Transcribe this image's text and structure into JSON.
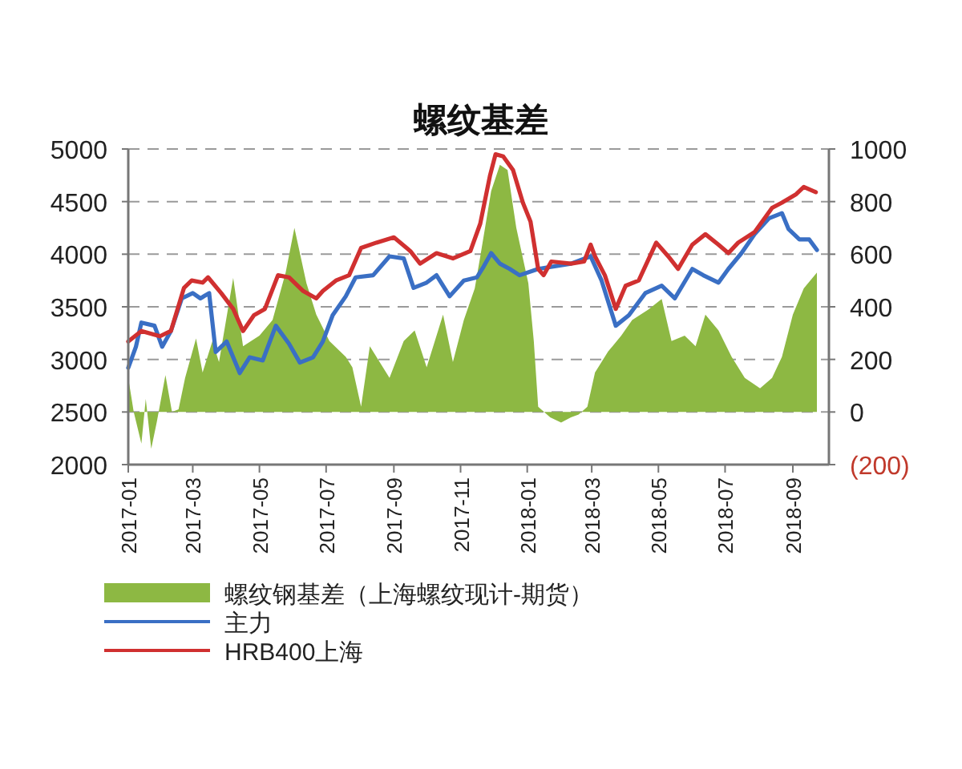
{
  "chart_data": {
    "type": "line",
    "title": "螺纹基差",
    "xlim": [
      "2017-01-01",
      "2018-10-04"
    ],
    "xticks": [
      "2017-01",
      "2017-03",
      "2017-05",
      "2017-07",
      "2017-09",
      "2017-11",
      "2018-01",
      "2018-03",
      "2018-05",
      "2018-07",
      "2018-09"
    ],
    "ylim": [
      2000,
      5000
    ],
    "yticks": [
      2000,
      2500,
      3000,
      3500,
      4000,
      4500,
      5000
    ],
    "y2lim": [
      -200,
      1000
    ],
    "y2ticks": [
      {
        "value": -200,
        "label": "(200)"
      },
      0,
      200,
      400,
      600,
      800,
      1000
    ],
    "grid": "y",
    "legend": "bottom",
    "series": [
      {
        "name": "螺纹钢基差（上海螺纹现计-期货）",
        "type": "area",
        "axis": "y2",
        "color": "#8db843",
        "x": [
          "2017-01-01",
          "2017-01-06",
          "2017-01-13",
          "2017-01-17",
          "2017-01-22",
          "2017-01-27",
          "2017-02-04",
          "2017-02-10",
          "2017-02-16",
          "2017-02-22",
          "2017-03-04",
          "2017-03-10",
          "2017-03-19",
          "2017-03-25",
          "2017-04-07",
          "2017-04-16",
          "2017-05-01",
          "2017-05-13",
          "2017-05-25",
          "2017-06-02",
          "2017-06-13",
          "2017-06-22",
          "2017-07-04",
          "2017-07-19",
          "2017-07-25",
          "2017-08-02",
          "2017-08-10",
          "2017-08-19",
          "2017-08-28",
          "2017-09-10",
          "2017-09-20",
          "2017-10-01",
          "2017-10-16",
          "2017-10-25",
          "2017-11-04",
          "2017-11-14",
          "2017-11-19",
          "2017-11-29",
          "2017-12-07",
          "2017-12-14",
          "2017-12-22",
          "2018-01-02",
          "2018-01-07",
          "2018-01-11",
          "2018-01-22",
          "2018-02-01",
          "2018-02-10",
          "2018-02-17",
          "2018-02-25",
          "2018-03-04",
          "2018-03-16",
          "2018-03-28",
          "2018-04-07",
          "2018-04-22",
          "2018-05-04",
          "2018-05-13",
          "2018-05-25",
          "2018-06-04",
          "2018-06-13",
          "2018-06-25",
          "2018-07-07",
          "2018-07-19",
          "2018-08-02",
          "2018-08-13",
          "2018-08-22",
          "2018-09-01",
          "2018-09-11",
          "2018-09-23"
        ],
        "values": [
          130,
          0,
          -120,
          50,
          -140,
          -40,
          140,
          0,
          10,
          130,
          280,
          150,
          270,
          190,
          510,
          250,
          290,
          350,
          530,
          700,
          490,
          370,
          270,
          210,
          170,
          20,
          250,
          190,
          130,
          270,
          310,
          170,
          370,
          190,
          350,
          470,
          590,
          840,
          940,
          920,
          700,
          490,
          270,
          20,
          -20,
          -40,
          -20,
          -10,
          20,
          150,
          230,
          290,
          350,
          390,
          430,
          270,
          290,
          250,
          370,
          310,
          210,
          130,
          90,
          130,
          210,
          370,
          470,
          530
        ]
      },
      {
        "name": "主力",
        "color": "#3a6fc4",
        "x": [
          "2017-01-01",
          "2017-01-08",
          "2017-01-13",
          "2017-01-25",
          "2017-02-01",
          "2017-02-09",
          "2017-02-19",
          "2017-03-01",
          "2017-03-08",
          "2017-03-16",
          "2017-03-22",
          "2017-04-01",
          "2017-04-13",
          "2017-04-22",
          "2017-05-04",
          "2017-05-16",
          "2017-05-28",
          "2017-06-07",
          "2017-06-19",
          "2017-06-28",
          "2017-07-07",
          "2017-07-19",
          "2017-07-28",
          "2017-08-13",
          "2017-08-28",
          "2017-09-10",
          "2017-09-19",
          "2017-10-01",
          "2017-10-10",
          "2017-10-22",
          "2017-11-04",
          "2017-11-16",
          "2017-11-22",
          "2017-11-29",
          "2017-12-07",
          "2017-12-16",
          "2017-12-25",
          "2018-01-11",
          "2018-02-10",
          "2018-02-28",
          "2018-03-10",
          "2018-03-23",
          "2018-04-04",
          "2018-04-19",
          "2018-05-04",
          "2018-05-16",
          "2018-06-01",
          "2018-06-11",
          "2018-06-25",
          "2018-07-04",
          "2018-07-16",
          "2018-07-28",
          "2018-08-10",
          "2018-08-22",
          "2018-08-28",
          "2018-09-07",
          "2018-09-16",
          "2018-09-23"
        ],
        "values": [
          2920,
          3120,
          3350,
          3320,
          3120,
          3270,
          3580,
          3630,
          3580,
          3630,
          3070,
          3170,
          2870,
          3020,
          2990,
          3320,
          3150,
          2970,
          3020,
          3170,
          3420,
          3600,
          3780,
          3800,
          3980,
          3960,
          3680,
          3730,
          3800,
          3600,
          3750,
          3780,
          3880,
          4010,
          3910,
          3860,
          3800,
          3860,
          3910,
          3980,
          3750,
          3320,
          3420,
          3630,
          3700,
          3580,
          3860,
          3800,
          3730,
          3860,
          4010,
          4190,
          4340,
          4390,
          4240,
          4140,
          4140,
          4040
        ]
      },
      {
        "name": "HRB400上海",
        "color": "#d03030",
        "x": [
          "2017-01-01",
          "2017-01-13",
          "2017-01-30",
          "2017-02-09",
          "2017-02-21",
          "2017-02-28",
          "2017-03-10",
          "2017-03-15",
          "2017-03-27",
          "2017-04-07",
          "2017-04-16",
          "2017-04-26",
          "2017-05-06",
          "2017-05-18",
          "2017-05-28",
          "2017-06-10",
          "2017-06-22",
          "2017-06-28",
          "2017-07-10",
          "2017-07-22",
          "2017-08-02",
          "2017-08-16",
          "2017-09-01",
          "2017-09-16",
          "2017-09-25",
          "2017-10-10",
          "2017-10-25",
          "2017-11-10",
          "2017-11-19",
          "2017-11-28",
          "2017-12-03",
          "2017-12-10",
          "2017-12-19",
          "2017-12-28",
          "2018-01-04",
          "2018-01-11",
          "2018-01-16",
          "2018-01-23",
          "2018-02-10",
          "2018-02-22",
          "2018-02-28",
          "2018-03-04",
          "2018-03-13",
          "2018-03-23",
          "2018-04-01",
          "2018-04-13",
          "2018-04-29",
          "2018-05-10",
          "2018-05-19",
          "2018-06-01",
          "2018-06-13",
          "2018-06-25",
          "2018-07-04",
          "2018-07-13",
          "2018-07-28",
          "2018-08-13",
          "2018-08-22",
          "2018-09-04",
          "2018-09-11",
          "2018-09-22"
        ],
        "values": [
          3170,
          3270,
          3220,
          3270,
          3680,
          3750,
          3730,
          3780,
          3630,
          3480,
          3270,
          3420,
          3480,
          3800,
          3780,
          3650,
          3580,
          3650,
          3750,
          3800,
          4060,
          4110,
          4160,
          4030,
          3910,
          4010,
          3960,
          4030,
          4290,
          4750,
          4950,
          4930,
          4800,
          4490,
          4310,
          3860,
          3800,
          3930,
          3910,
          3930,
          4090,
          3980,
          3800,
          3480,
          3700,
          3750,
          4110,
          3980,
          3860,
          4090,
          4190,
          4090,
          4010,
          4110,
          4210,
          4440,
          4490,
          4570,
          4640,
          4590
        ]
      }
    ]
  }
}
